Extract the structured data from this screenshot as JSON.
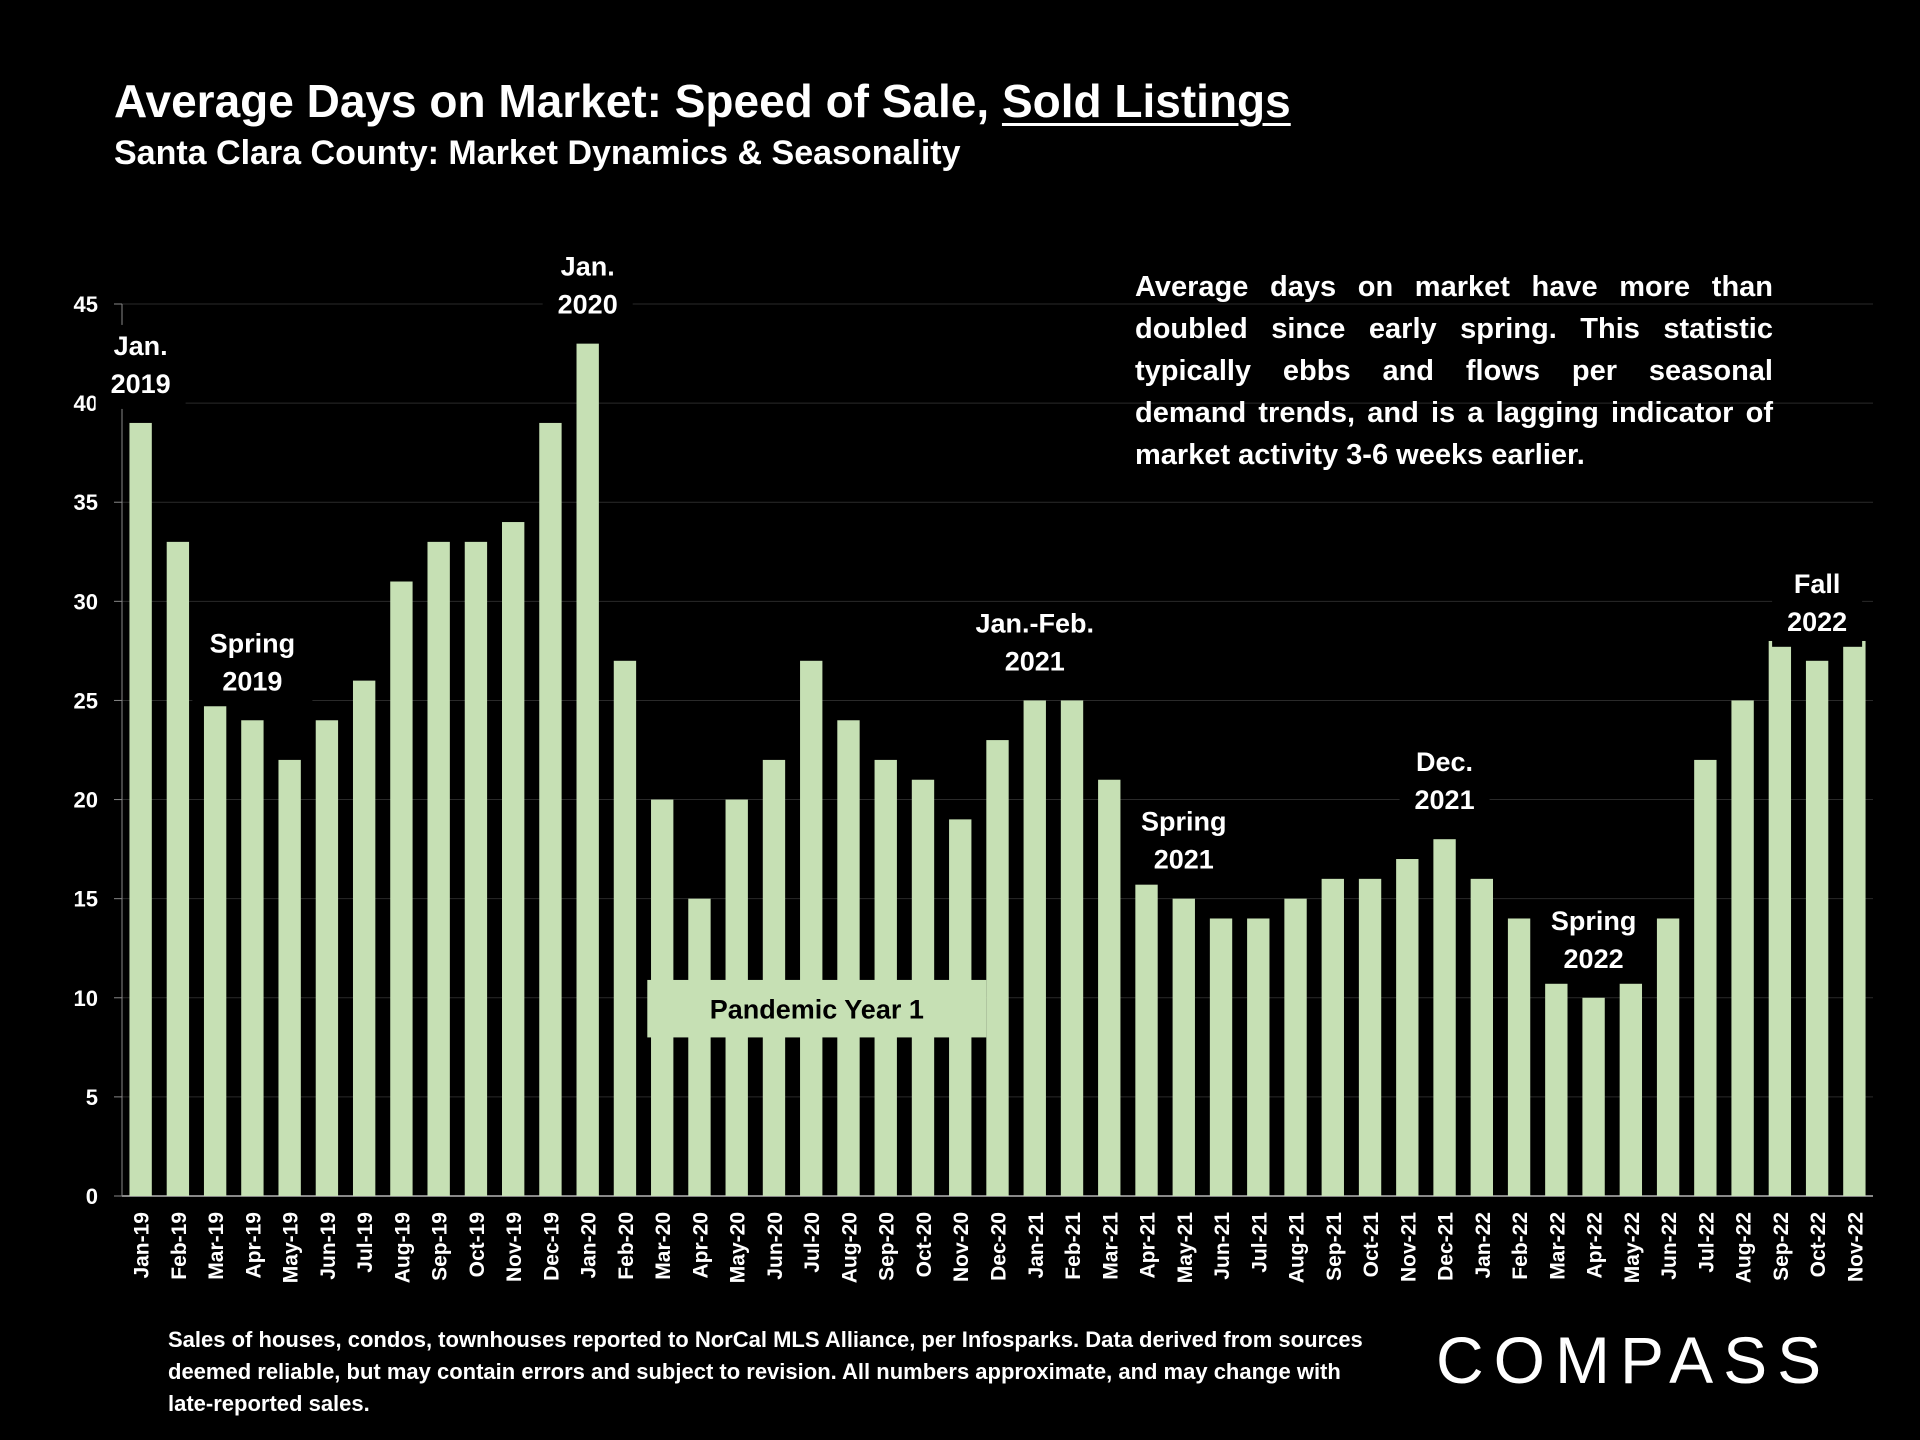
{
  "header": {
    "title_main": "Average Days on Market: Speed of Sale, ",
    "title_underlined": "Sold Listings",
    "subtitle": "Santa Clara County: Market Dynamics & Seasonality"
  },
  "note": "Average days on market have more than doubled since early spring. This statistic typically ebbs and flows per seasonal demand trends, and is a lagging indicator of market activity 3-6 weeks earlier.",
  "footnote": "Sales of houses, condos, townhouses reported to NorCal MLS Alliance, per Infosparks. Data derived from sources deemed reliable, but may contain errors and subject to revision. All numbers approximate, and may change with late-reported sales.",
  "logo": "COMPASS",
  "colors": {
    "background": "#000000",
    "bar": "#c6e0b4",
    "text": "#ffffff",
    "grid": "#2a2a2a"
  },
  "chart_data": {
    "type": "bar",
    "categories": [
      "Jan-19",
      "Feb-19",
      "Mar-19",
      "Apr-19",
      "May-19",
      "Jun-19",
      "Jul-19",
      "Aug-19",
      "Sep-19",
      "Oct-19",
      "Nov-19",
      "Dec-19",
      "Jan-20",
      "Feb-20",
      "Mar-20",
      "Apr-20",
      "May-20",
      "Jun-20",
      "Jul-20",
      "Aug-20",
      "Sep-20",
      "Oct-20",
      "Nov-20",
      "Dec-20",
      "Jan-21",
      "Feb-21",
      "Mar-21",
      "Apr-21",
      "May-21",
      "Jun-21",
      "Jul-21",
      "Aug-21",
      "Sep-21",
      "Oct-21",
      "Nov-21",
      "Dec-21",
      "Jan-22",
      "Feb-22",
      "Mar-22",
      "Apr-22",
      "May-22",
      "Jun-22",
      "Jul-22",
      "Aug-22",
      "Sep-22",
      "Oct-22",
      "Nov-22"
    ],
    "values": [
      39,
      33,
      27,
      24,
      22,
      24,
      26,
      31,
      33,
      33,
      34,
      39,
      43,
      27,
      20,
      15,
      20,
      22,
      27,
      24,
      22,
      21,
      19,
      23,
      25,
      25,
      21,
      17,
      15,
      14,
      14,
      15,
      16,
      16,
      17,
      18,
      16,
      14,
      11,
      10,
      11,
      14,
      22,
      25,
      28,
      27,
      28
    ],
    "ylim": [
      0,
      45
    ],
    "yticks": [
      0,
      5,
      10,
      15,
      20,
      25,
      30,
      35,
      40,
      45
    ],
    "grid": true,
    "annotations": [
      {
        "lines": [
          "Jan.",
          "2019"
        ],
        "category": "Jan-19"
      },
      {
        "lines": [
          "Jan.",
          "2020"
        ],
        "category": "Jan-20"
      },
      {
        "lines": [
          "Spring",
          "2019"
        ],
        "category": "Apr-19"
      },
      {
        "lines": [
          "Jan.-Feb.",
          "2021"
        ],
        "category": "Jan-21"
      },
      {
        "lines": [
          "Spring",
          "2021"
        ],
        "category": "May-21"
      },
      {
        "lines": [
          "Dec.",
          "2021"
        ],
        "category": "Dec-21"
      },
      {
        "lines": [
          "Spring",
          "2022"
        ],
        "category": "Apr-22"
      },
      {
        "lines": [
          "Fall",
          "2022"
        ],
        "category": "Oct-22"
      }
    ],
    "band_label": "Pandemic Year 1"
  }
}
